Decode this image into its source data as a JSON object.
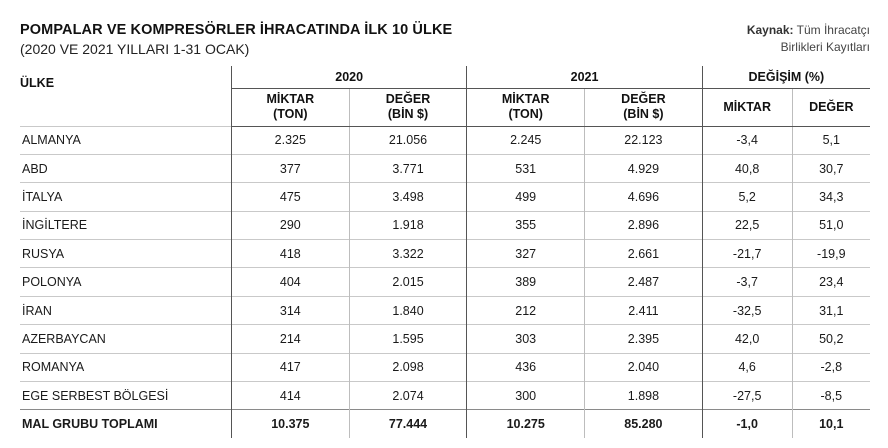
{
  "header": {
    "title": "POMPALAR VE KOMPRESÖRLER İHRACATINDA İLK 10 ÜLKE",
    "subtitle": "(2020 VE 2021 YILLARI 1-31 OCAK)",
    "source_label": "Kaynak:",
    "source_line1": "Tüm İhracatçı",
    "source_line2": "Birlikleri Kayıtları"
  },
  "columns": {
    "country": "ÜLKE",
    "group_2020": "2020",
    "group_2021": "2021",
    "group_change": "DEĞİŞİM (%)",
    "qty_line1": "MİKTAR",
    "qty_line2": "(TON)",
    "val_line1": "DEĞER",
    "val_line2": "(BİN $)",
    "chg_qty": "MİKTAR",
    "chg_val": "DEĞER"
  },
  "rows": [
    {
      "country": "ALMANYA",
      "q2020": "2.325",
      "v2020": "21.056",
      "q2021": "2.245",
      "v2021": "22.123",
      "dq": "-3,4",
      "dv": "5,1"
    },
    {
      "country": "ABD",
      "q2020": "377",
      "v2020": "3.771",
      "q2021": "531",
      "v2021": "4.929",
      "dq": "40,8",
      "dv": "30,7"
    },
    {
      "country": "İTALYA",
      "q2020": "475",
      "v2020": "3.498",
      "q2021": "499",
      "v2021": "4.696",
      "dq": "5,2",
      "dv": "34,3"
    },
    {
      "country": "İNGİLTERE",
      "q2020": "290",
      "v2020": "1.918",
      "q2021": "355",
      "v2021": "2.896",
      "dq": "22,5",
      "dv": "51,0"
    },
    {
      "country": "RUSYA",
      "q2020": "418",
      "v2020": "3.322",
      "q2021": "327",
      "v2021": "2.661",
      "dq": "-21,7",
      "dv": "-19,9"
    },
    {
      "country": "POLONYA",
      "q2020": "404",
      "v2020": "2.015",
      "q2021": "389",
      "v2021": "2.487",
      "dq": "-3,7",
      "dv": "23,4"
    },
    {
      "country": "İRAN",
      "q2020": "314",
      "v2020": "1.840",
      "q2021": "212",
      "v2021": "2.411",
      "dq": "-32,5",
      "dv": "31,1"
    },
    {
      "country": "AZERBAYCAN",
      "q2020": "214",
      "v2020": "1.595",
      "q2021": "303",
      "v2021": "2.395",
      "dq": "42,0",
      "dv": "50,2"
    },
    {
      "country": "ROMANYA",
      "q2020": "417",
      "v2020": "2.098",
      "q2021": "436",
      "v2021": "2.040",
      "dq": "4,6",
      "dv": "-2,8"
    },
    {
      "country": "EGE SERBEST BÖLGESİ",
      "q2020": "414",
      "v2020": "2.074",
      "q2021": "300",
      "v2021": "1.898",
      "dq": "-27,5",
      "dv": "-8,5"
    }
  ],
  "total": {
    "country": "MAL GRUBU TOPLAMI",
    "q2020": "10.375",
    "v2020": "77.444",
    "q2021": "10.275",
    "v2021": "85.280",
    "dq": "-1,0",
    "dv": "10,1"
  }
}
